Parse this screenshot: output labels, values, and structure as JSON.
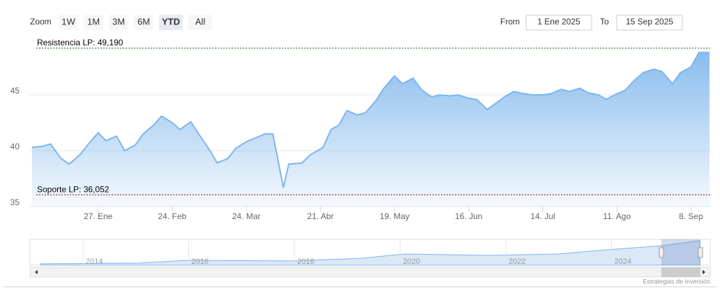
{
  "chart_data": {
    "type": "area",
    "range_selector": {
      "label": "Zoom",
      "buttons": [
        "1W",
        "1M",
        "3M",
        "6M",
        "YTD",
        "All"
      ],
      "selected": 4,
      "from_label": "From",
      "from": "1 Ene 2025",
      "to_label": "To",
      "to": "15 Sep 2025"
    },
    "x": [
      "2025-01-02",
      "2025-01-06",
      "2025-01-09",
      "2025-01-13",
      "2025-01-16",
      "2025-01-20",
      "2025-01-23",
      "2025-01-27",
      "2025-01-30",
      "2025-02-03",
      "2025-02-06",
      "2025-02-10",
      "2025-02-13",
      "2025-02-17",
      "2025-02-20",
      "2025-02-24",
      "2025-02-27",
      "2025-03-03",
      "2025-03-06",
      "2025-03-10",
      "2025-03-13",
      "2025-03-17",
      "2025-03-20",
      "2025-03-24",
      "2025-03-27",
      "2025-03-31",
      "2025-04-03",
      "2025-04-07",
      "2025-04-09",
      "2025-04-14",
      "2025-04-17",
      "2025-04-22",
      "2025-04-25",
      "2025-04-28",
      "2025-05-01",
      "2025-05-05",
      "2025-05-08",
      "2025-05-12",
      "2025-05-15",
      "2025-05-19",
      "2025-05-22",
      "2025-05-26",
      "2025-05-29",
      "2025-06-02",
      "2025-06-05",
      "2025-06-09",
      "2025-06-12",
      "2025-06-16",
      "2025-06-19",
      "2025-06-23",
      "2025-06-26",
      "2025-06-30",
      "2025-07-03",
      "2025-07-07",
      "2025-07-10",
      "2025-07-14",
      "2025-07-17",
      "2025-07-21",
      "2025-07-24",
      "2025-07-28",
      "2025-07-31",
      "2025-08-04",
      "2025-08-07",
      "2025-08-11",
      "2025-08-14",
      "2025-08-18",
      "2025-08-21",
      "2025-08-25",
      "2025-08-28",
      "2025-09-01",
      "2025-09-04",
      "2025-09-08",
      "2025-09-11",
      "2025-09-15"
    ],
    "series": [
      {
        "color": "#7cb5ec",
        "values": [
          40.3,
          40.4,
          40.6,
          39.3,
          38.8,
          39.6,
          40.5,
          41.6,
          40.9,
          41.3,
          40.0,
          40.5,
          41.5,
          42.3,
          43.1,
          42.5,
          41.9,
          42.6,
          41.5,
          40.1,
          38.9,
          39.3,
          40.2,
          40.8,
          41.1,
          41.5,
          41.5,
          36.7,
          38.8,
          38.9,
          39.6,
          40.3,
          41.9,
          42.3,
          43.6,
          43.2,
          43.4,
          44.5,
          45.6,
          46.7,
          46.0,
          46.5,
          45.5,
          44.8,
          45.0,
          44.9,
          45.0,
          44.7,
          44.6,
          43.7,
          44.2,
          44.9,
          45.3,
          45.1,
          45.0,
          45.0,
          45.1,
          45.5,
          45.3,
          45.6,
          45.2,
          45.0,
          44.6,
          45.1,
          45.4,
          46.4,
          47.0,
          47.3,
          47.1,
          46.0,
          47.0,
          47.5,
          48.8,
          48.8
        ]
      }
    ],
    "xlim": [
      "2025-01-01",
      "2025-09-15"
    ],
    "xticks": [
      {
        "value": "2025-01-27",
        "label": "27. Ene"
      },
      {
        "value": "2025-02-24",
        "label": "24. Feb"
      },
      {
        "value": "2025-03-24",
        "label": "24. Mar"
      },
      {
        "value": "2025-04-21",
        "label": "21. Abr"
      },
      {
        "value": "2025-05-19",
        "label": "19. May"
      },
      {
        "value": "2025-06-16",
        "label": "16. Jun"
      },
      {
        "value": "2025-07-14",
        "label": "14. Jul"
      },
      {
        "value": "2025-08-11",
        "label": "11. Ago"
      },
      {
        "value": "2025-09-08",
        "label": "8. Sep"
      }
    ],
    "ylim": [
      35,
      50
    ],
    "yticks": [
      35,
      40,
      45
    ],
    "grid": true,
    "plot_lines": [
      {
        "value": 49.19,
        "label": "Resistencia LP: 49,190",
        "color": "#006400"
      },
      {
        "value": 36.052,
        "label": "Soporte LP: 36,052",
        "color": "#8b0000"
      }
    ],
    "navigator": {
      "labels": [
        "2014",
        "2016",
        "2018",
        "2020",
        "2022",
        "2024"
      ]
    },
    "credits": "Estrategias de Inversión"
  }
}
